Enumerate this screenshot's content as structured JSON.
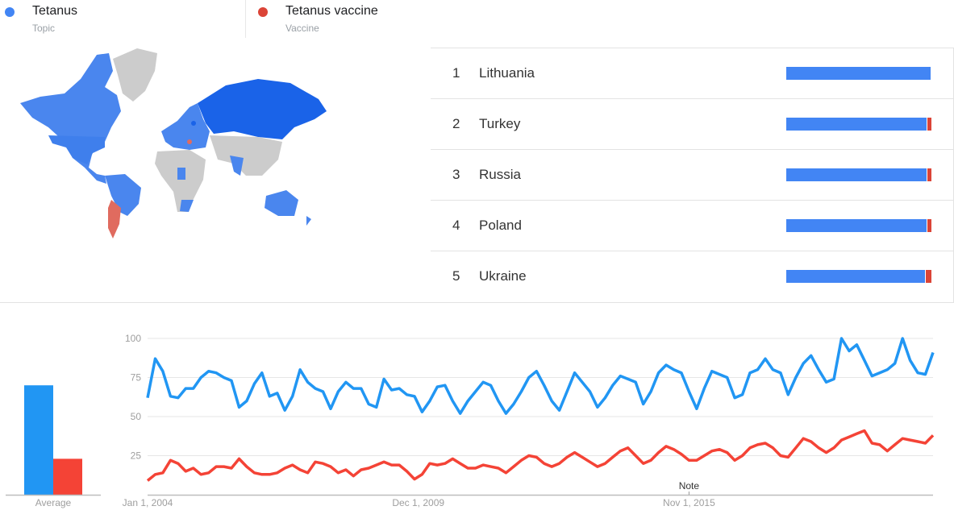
{
  "legend": [
    {
      "name": "Tetanus",
      "type": "Topic",
      "color": "#4285f4"
    },
    {
      "name": "Tetanus vaccine",
      "type": "Vaccine",
      "color": "#db4437"
    }
  ],
  "map": {
    "description_colors": {
      "tetanus": "#4285f4",
      "tetanus_dark": "#1a63e8",
      "vaccine": "#e06b5f",
      "no_data": "#cccccc"
    }
  },
  "ranking": [
    {
      "rank": "1",
      "country": "Lithuania",
      "tetanus_pct": 100,
      "vaccine_pct": 0
    },
    {
      "rank": "2",
      "country": "Turkey",
      "tetanus_pct": 97,
      "vaccine_pct": 3
    },
    {
      "rank": "3",
      "country": "Russia",
      "tetanus_pct": 97,
      "vaccine_pct": 3
    },
    {
      "rank": "4",
      "country": "Poland",
      "tetanus_pct": 97,
      "vaccine_pct": 3
    },
    {
      "rank": "5",
      "country": "Ukraine",
      "tetanus_pct": 96,
      "vaccine_pct": 4
    }
  ],
  "chart_data": [
    {
      "type": "bar",
      "categories": [
        "Average"
      ],
      "series": [
        {
          "name": "Tetanus",
          "color": "#2196f3",
          "values": [
            70
          ]
        },
        {
          "name": "Tetanus vaccine",
          "color": "#f44336",
          "values": [
            23
          ]
        }
      ]
    },
    {
      "type": "line",
      "yticks": [
        "100",
        "75",
        "50",
        "25"
      ],
      "ylim": [
        0,
        100
      ],
      "xticks": [
        {
          "label": "Jan 1, 2004",
          "date": "2004-01"
        },
        {
          "label": "Dec 1, 2009",
          "date": "2009-12"
        },
        {
          "label": "Nov 1, 2015",
          "date": "2015-11"
        }
      ],
      "xlim": [
        "2004-01",
        "2021-03"
      ],
      "grid": true,
      "annotation": {
        "label": "Note",
        "date": "2015-11"
      },
      "x": [
        "2004-01",
        "2004-03",
        "2004-05",
        "2004-07",
        "2004-09",
        "2004-11",
        "2005-01",
        "2005-03",
        "2005-05",
        "2005-07",
        "2005-09",
        "2005-11",
        "2006-01",
        "2006-03",
        "2006-05",
        "2006-07",
        "2006-09",
        "2006-11",
        "2007-01",
        "2007-03",
        "2007-05",
        "2007-07",
        "2007-09",
        "2007-11",
        "2008-01",
        "2008-03",
        "2008-05",
        "2008-07",
        "2008-09",
        "2008-11",
        "2009-01",
        "2009-03",
        "2009-05",
        "2009-07",
        "2009-09",
        "2009-11",
        "2010-01",
        "2010-03",
        "2010-05",
        "2010-07",
        "2010-09",
        "2010-11",
        "2011-01",
        "2011-03",
        "2011-05",
        "2011-07",
        "2011-09",
        "2011-11",
        "2012-01",
        "2012-03",
        "2012-05",
        "2012-07",
        "2012-09",
        "2012-11",
        "2013-01",
        "2013-03",
        "2013-05",
        "2013-07",
        "2013-09",
        "2013-11",
        "2014-01",
        "2014-03",
        "2014-05",
        "2014-07",
        "2014-09",
        "2014-11",
        "2015-01",
        "2015-03",
        "2015-05",
        "2015-07",
        "2015-09",
        "2015-11",
        "2016-01",
        "2016-03",
        "2016-05",
        "2016-07",
        "2016-09",
        "2016-11",
        "2017-01",
        "2017-03",
        "2017-05",
        "2017-07",
        "2017-09",
        "2017-11",
        "2018-01",
        "2018-03",
        "2018-05",
        "2018-07",
        "2018-09",
        "2018-11",
        "2019-01",
        "2019-03",
        "2019-05",
        "2019-07",
        "2019-09",
        "2019-11",
        "2020-01",
        "2020-03",
        "2020-05",
        "2020-07",
        "2020-09",
        "2020-11",
        "2021-01",
        "2021-03"
      ],
      "series": [
        {
          "name": "Tetanus",
          "color": "#2196f3",
          "values": [
            62,
            87,
            79,
            63,
            62,
            68,
            68,
            75,
            79,
            78,
            75,
            73,
            56,
            60,
            71,
            78,
            63,
            65,
            54,
            63,
            80,
            72,
            68,
            66,
            55,
            66,
            72,
            68,
            68,
            58,
            56,
            74,
            67,
            68,
            64,
            63,
            53,
            60,
            69,
            70,
            60,
            52,
            60,
            66,
            72,
            70,
            60,
            52,
            58,
            66,
            75,
            79,
            70,
            60,
            54,
            66,
            78,
            72,
            66,
            56,
            62,
            70,
            76,
            74,
            72,
            58,
            66,
            78,
            83,
            80,
            78,
            66,
            55,
            68,
            79,
            77,
            75,
            62,
            64,
            78,
            80,
            87,
            80,
            78,
            64,
            75,
            84,
            89,
            80,
            72,
            74,
            100,
            92,
            96,
            86,
            76,
            78,
            80,
            84,
            100,
            86,
            78,
            77,
            91
          ]
        },
        {
          "name": "Tetanus vaccine",
          "color": "#f44336",
          "values": [
            9,
            13,
            14,
            22,
            20,
            15,
            17,
            13,
            14,
            18,
            18,
            17,
            23,
            18,
            14,
            13,
            13,
            14,
            17,
            19,
            16,
            14,
            21,
            20,
            18,
            14,
            16,
            12,
            16,
            17,
            19,
            21,
            19,
            19,
            15,
            10,
            13,
            20,
            19,
            20,
            23,
            20,
            17,
            17,
            19,
            18,
            17,
            14,
            18,
            22,
            25,
            24,
            20,
            18,
            20,
            24,
            27,
            24,
            21,
            18,
            20,
            24,
            28,
            30,
            25,
            20,
            22,
            27,
            31,
            29,
            26,
            22,
            22,
            25,
            28,
            29,
            27,
            22,
            25,
            30,
            32,
            33,
            30,
            25,
            24,
            30,
            36,
            34,
            30,
            27,
            30,
            35,
            37,
            39,
            41,
            33,
            32,
            28,
            32,
            36,
            35,
            34,
            33,
            38
          ]
        }
      ]
    }
  ]
}
